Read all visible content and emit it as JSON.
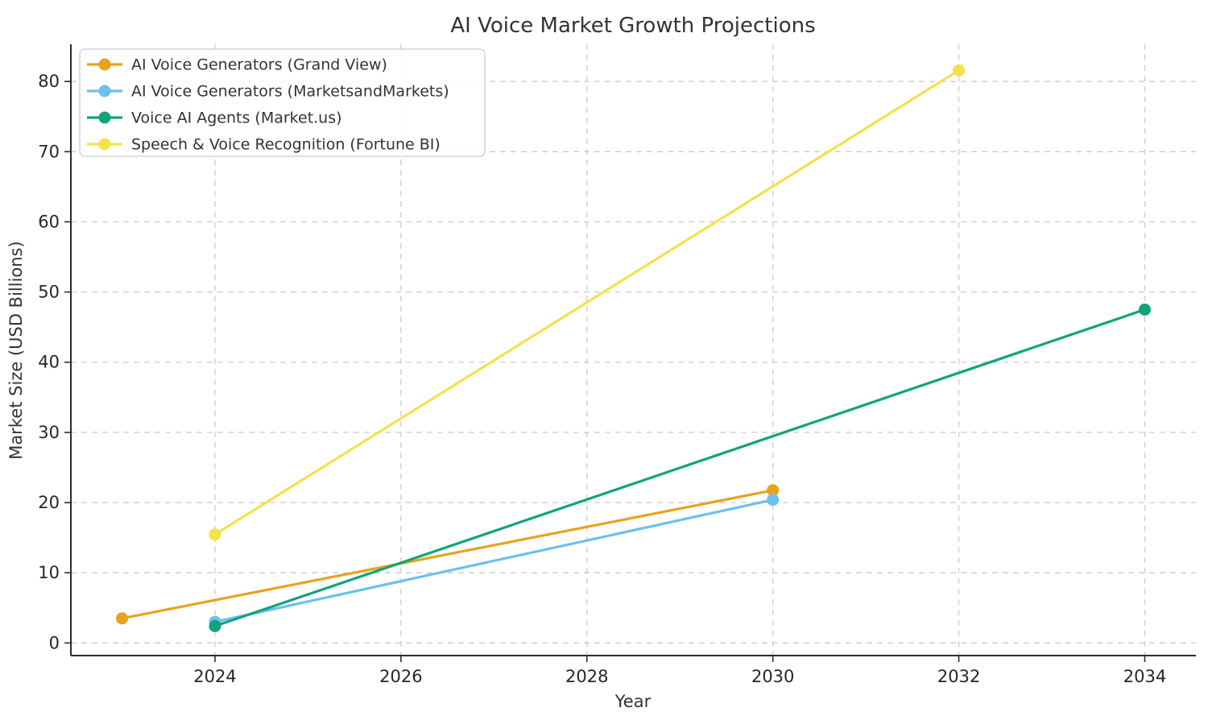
{
  "chart_data": {
    "type": "line",
    "title": "AI Voice Market Growth Projections",
    "xlabel": "Year",
    "ylabel": "Market Size (USD Billions)",
    "x_ticks": [
      2024,
      2026,
      2028,
      2030,
      2032,
      2034
    ],
    "y_ticks": [
      0,
      10,
      20,
      30,
      40,
      50,
      60,
      70,
      80
    ],
    "xlim": [
      2022.45,
      2034.55
    ],
    "ylim": [
      -1.8,
      85.3
    ],
    "grid": "dashed-both-axes",
    "legend_position": "upper-left",
    "series": [
      {
        "name": "AI Voice Generators (Grand View)",
        "color": "#E8A21E",
        "x": [
          2023,
          2030
        ],
        "values": [
          3.5,
          21.75
        ]
      },
      {
        "name": "AI Voice Generators (MarketsandMarkets)",
        "color": "#6CC0EE",
        "x": [
          2024,
          2030
        ],
        "values": [
          3.0,
          20.4
        ]
      },
      {
        "name": "Voice AI Agents (Market.us)",
        "color": "#10A37C",
        "x": [
          2024,
          2034
        ],
        "values": [
          2.4,
          47.5
        ]
      },
      {
        "name": "Speech & Voice Recognition (Fortune BI)",
        "color": "#F2E24C",
        "x": [
          2024,
          2032
        ],
        "values": [
          15.46,
          81.59
        ]
      }
    ],
    "colors": {
      "background": "#ffffff",
      "grid": "#cccccc",
      "spine": "#2b2b2b",
      "tick": "#2b2b2b",
      "text": "#333333",
      "legend_border": "#cccccc",
      "legend_fill": "#ffffff"
    }
  }
}
